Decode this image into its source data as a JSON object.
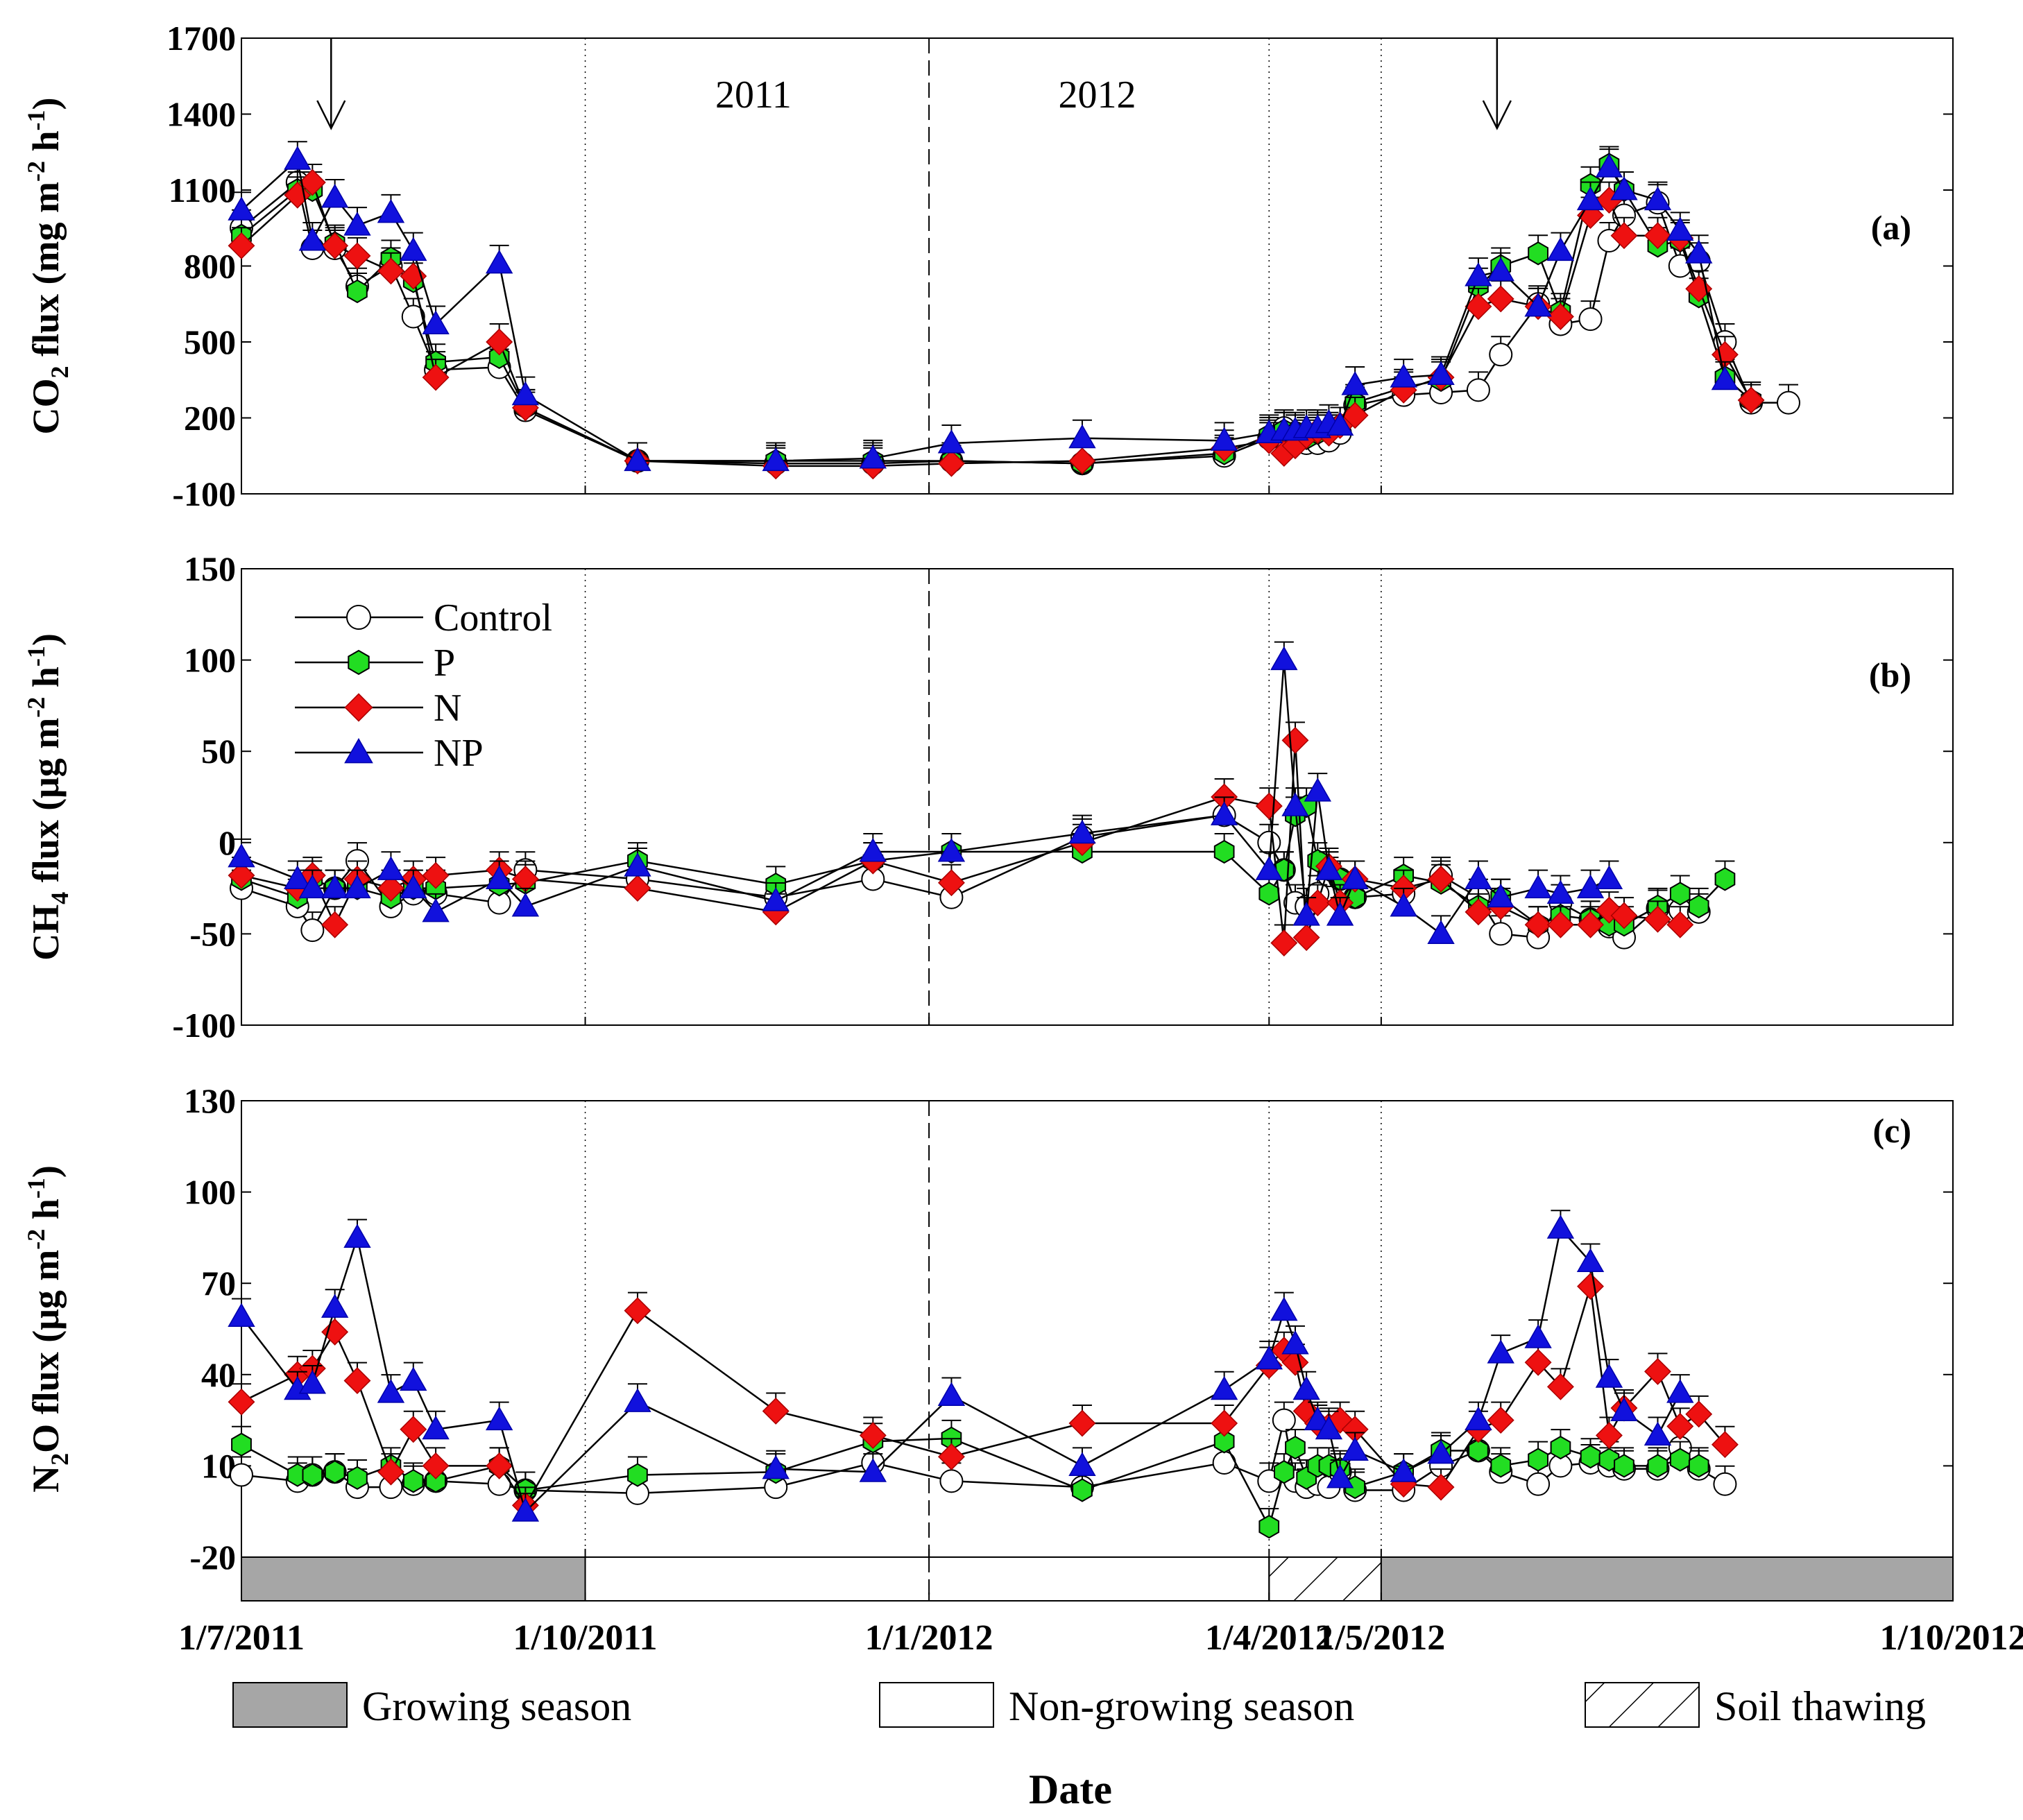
{
  "chart_data": {
    "type": "line",
    "xlabel": "Date",
    "x_range": [
      "2011-07-01",
      "2012-10-01"
    ],
    "x_ticks": [
      {
        "label": "1/7/2011",
        "date": "2011-07-01"
      },
      {
        "label": "1/10/2011",
        "date": "2011-10-01"
      },
      {
        "label": "1/1/2012",
        "date": "2012-01-01"
      },
      {
        "label": "1/4/2012",
        "date": "2012-04-01"
      },
      {
        "label": "1/5/2012",
        "date": "2012-05-01"
      },
      {
        "label": "1/10/2012",
        "date": "2012-10-01"
      }
    ],
    "year_labels": [
      {
        "text": "2011",
        "date": "2011-11-15"
      },
      {
        "text": "2012",
        "date": "2012-02-15"
      }
    ],
    "year_divider": "2012-01-01",
    "season_dividers": [
      "2011-10-01",
      "2012-04-01",
      "2012-05-01"
    ],
    "fertilization_arrows": [
      "2011-07-25",
      "2012-06-01"
    ],
    "legend": [
      {
        "name": "Control",
        "marker": "circle",
        "color": "#ffffff"
      },
      {
        "name": "P",
        "marker": "hexagon",
        "color": "#22dd22"
      },
      {
        "name": "N",
        "marker": "diamond",
        "color": "#ee1111"
      },
      {
        "name": "NP",
        "marker": "triangle",
        "color": "#1111dd"
      }
    ],
    "season_bar": [
      {
        "start": "2011-07-01",
        "end": "2011-10-01",
        "type": "growing"
      },
      {
        "start": "2011-10-01",
        "end": "2012-04-01",
        "type": "non-growing"
      },
      {
        "start": "2012-04-01",
        "end": "2012-05-01",
        "type": "thawing"
      },
      {
        "start": "2012-05-01",
        "end": "2012-10-01",
        "type": "growing"
      }
    ],
    "season_legend": [
      {
        "type": "growing",
        "label": "Growing season"
      },
      {
        "type": "non-growing",
        "label": "Non-growing season"
      },
      {
        "type": "thawing",
        "label": "Soil thawing"
      }
    ],
    "panels": [
      {
        "id": "a",
        "panel_label": "(a)",
        "ylabel_main": "CO",
        "ylabel_sub": "2",
        "ylabel_rest": " flux (mg m",
        "ylabel_sup1": "-2",
        "ylabel_mid": " h",
        "ylabel_sup2": "-1",
        "ylabel_end": ")",
        "ylim": [
          -100,
          1700
        ],
        "yticks": [
          -100,
          200,
          500,
          800,
          1100,
          1400,
          1700
        ],
        "dates": [
          "2011-07-01",
          "2011-07-16",
          "2011-07-20",
          "2011-07-26",
          "2011-08-01",
          "2011-08-10",
          "2011-08-16",
          "2011-08-22",
          "2011-09-08",
          "2011-09-15",
          "2011-10-15",
          "2011-11-21",
          "2011-12-17",
          "2012-01-07",
          "2012-02-11",
          "2012-03-20",
          "2012-04-01",
          "2012-04-05",
          "2012-04-08",
          "2012-04-11",
          "2012-04-14",
          "2012-04-17",
          "2012-04-20",
          "2012-04-24",
          "2012-05-07",
          "2012-05-17",
          "2012-05-27",
          "2012-06-02",
          "2012-06-12",
          "2012-06-18",
          "2012-06-26",
          "2012-07-01",
          "2012-07-05",
          "2012-07-14",
          "2012-07-20",
          "2012-07-25",
          "2012-08-01",
          "2012-08-08",
          "2012-08-18",
          "2012-08-28",
          "2012-09-09",
          "2012-09-14",
          "2012-10-01"
        ],
        "series": [
          {
            "name": "Control",
            "values": [
              950,
              1130,
              870,
              870,
              720,
              800,
              600,
              390,
              400,
              230,
              30,
              20,
              20,
              30,
              20,
              50,
              120,
              160,
              140,
              100,
              100,
              110,
              140,
              250,
              290,
              300,
              310,
              450,
              650,
              570,
              590,
              900,
              1000,
              1050,
              800,
              820,
              500,
              260,
              260,
              null,
              null,
              null,
              null
            ]
          },
          {
            "name": "P",
            "values": [
              920,
              1100,
              1100,
              890,
              700,
              830,
              740,
              420,
              440,
              240,
              30,
              30,
              30,
              30,
              20,
              60,
              130,
              150,
              140,
              120,
              140,
              150,
              170,
              260,
              320,
              350,
              720,
              800,
              850,
              620,
              1120,
              1200,
              1100,
              880,
              900,
              680,
              360,
              270,
              null,
              null,
              null,
              null,
              null
            ]
          },
          {
            "name": "N",
            "values": [
              880,
              1080,
              1130,
              880,
              840,
              780,
              760,
              360,
              500,
              240,
              30,
              10,
              10,
              20,
              30,
              80,
              110,
              60,
              90,
              130,
              150,
              140,
              170,
              210,
              310,
              360,
              640,
              670,
              640,
              600,
              1000,
              1060,
              920,
              920,
              910,
              710,
              450,
              270,
              null,
              null,
              null,
              null,
              null
            ]
          },
          {
            "name": "NP",
            "values": [
              1020,
              1220,
              900,
              1070,
              960,
              1010,
              860,
              570,
              810,
              290,
              30,
              30,
              40,
              100,
              120,
              110,
              140,
              150,
              150,
              160,
              160,
              180,
              170,
              330,
              360,
              370,
              760,
              780,
              640,
              860,
              1060,
              1190,
              1100,
              1060,
              940,
              850,
              350,
              null,
              null,
              null,
              null,
              null,
              null
            ]
          }
        ]
      },
      {
        "id": "b",
        "panel_label": "(b)",
        "ylabel_main": "CH",
        "ylabel_sub": "4",
        "ylabel_rest": " flux (μg m",
        "ylabel_sup1": "-2",
        "ylabel_mid": " h",
        "ylabel_sup2": "-1",
        "ylabel_end": ")",
        "ylim": [
          -100,
          150
        ],
        "yticks": [
          -100,
          -50,
          0,
          50,
          100,
          150
        ],
        "dates": [
          "2011-07-01",
          "2011-07-16",
          "2011-07-20",
          "2011-07-26",
          "2011-08-01",
          "2011-08-10",
          "2011-08-16",
          "2011-08-22",
          "2011-09-08",
          "2011-09-15",
          "2011-10-15",
          "2011-11-21",
          "2011-12-17",
          "2012-01-07",
          "2012-02-11",
          "2012-03-20",
          "2012-04-01",
          "2012-04-05",
          "2012-04-08",
          "2012-04-11",
          "2012-04-14",
          "2012-04-17",
          "2012-04-20",
          "2012-04-24",
          "2012-05-07",
          "2012-05-17",
          "2012-05-27",
          "2012-06-02",
          "2012-06-12",
          "2012-06-18",
          "2012-06-26",
          "2012-07-01",
          "2012-07-05",
          "2012-07-14",
          "2012-07-20",
          "2012-07-25",
          "2012-08-01",
          "2012-08-08",
          "2012-08-18",
          "2012-08-28",
          "2012-09-09",
          "2012-09-14",
          "2012-10-01"
        ],
        "series": [
          {
            "name": "Control",
            "values": [
              -25,
              -35,
              -48,
              -25,
              -10,
              -35,
              -28,
              -28,
              -33,
              -15,
              -20,
              -30,
              -20,
              -30,
              3,
              15,
              0,
              -15,
              -33,
              -35,
              -28,
              -18,
              -20,
              -30,
              -28,
              -18,
              -30,
              -50,
              -52,
              -33,
              -42,
              -46,
              -52,
              -36,
              -37,
              -38,
              null,
              null,
              null,
              null,
              null,
              null,
              null
            ]
          },
          {
            "name": "P",
            "values": [
              -20,
              -30,
              -20,
              -25,
              -25,
              -30,
              -25,
              -25,
              -23,
              -22,
              -10,
              -23,
              -10,
              -5,
              -5,
              -5,
              -28,
              -15,
              15,
              20,
              -10,
              -15,
              -20,
              -30,
              -18,
              -22,
              -35,
              -30,
              -45,
              -40,
              -42,
              -45,
              -45,
              -35,
              -28,
              -35,
              -20,
              null,
              null,
              null,
              null,
              null,
              null
            ]
          },
          {
            "name": "N",
            "values": [
              -18,
              -25,
              -18,
              -45,
              -20,
              -25,
              -20,
              -18,
              -15,
              -20,
              -25,
              -38,
              -10,
              -22,
              0,
              25,
              20,
              -55,
              56,
              -52,
              -33,
              -13,
              -33,
              -20,
              -25,
              -20,
              -38,
              -35,
              -45,
              -45,
              -45,
              -37,
              -40,
              -42,
              -45,
              null,
              null,
              null,
              null,
              null,
              null,
              null,
              null
            ]
          },
          {
            "name": "NP",
            "values": [
              -8,
              -20,
              -25,
              -25,
              -25,
              -15,
              -25,
              -38,
              -20,
              -35,
              -13,
              -32,
              -5,
              -5,
              5,
              15,
              -15,
              100,
              20,
              -40,
              28,
              -15,
              -40,
              -20,
              -35,
              -50,
              -20,
              -30,
              -25,
              -28,
              -25,
              -20,
              null,
              null,
              null,
              null,
              null,
              null,
              null,
              null,
              null,
              null,
              null
            ]
          }
        ]
      },
      {
        "id": "c",
        "panel_label": "(c)",
        "ylabel_main": "N",
        "ylabel_sub": "2",
        "ylabel_rest": "O flux (μg m",
        "ylabel_sup1": "-2",
        "ylabel_mid": " h",
        "ylabel_sup2": "-1",
        "ylabel_end": ")",
        "ylim": [
          -20,
          130
        ],
        "yticks": [
          -20,
          10,
          40,
          70,
          100,
          130
        ],
        "dates": [
          "2011-07-01",
          "2011-07-16",
          "2011-07-20",
          "2011-07-26",
          "2011-08-01",
          "2011-08-10",
          "2011-08-16",
          "2011-08-22",
          "2011-09-08",
          "2011-09-15",
          "2011-10-15",
          "2011-11-21",
          "2011-12-17",
          "2012-01-07",
          "2012-02-11",
          "2012-03-20",
          "2012-04-01",
          "2012-04-05",
          "2012-04-08",
          "2012-04-11",
          "2012-04-14",
          "2012-04-17",
          "2012-04-20",
          "2012-04-24",
          "2012-05-07",
          "2012-05-17",
          "2012-05-27",
          "2012-06-02",
          "2012-06-12",
          "2012-06-18",
          "2012-06-26",
          "2012-07-01",
          "2012-07-05",
          "2012-07-14",
          "2012-07-20",
          "2012-07-25",
          "2012-08-01",
          "2012-08-08",
          "2012-08-18",
          "2012-08-28",
          "2012-09-09",
          "2012-09-14",
          "2012-10-01"
        ],
        "series": [
          {
            "name": "Control",
            "values": [
              7,
              5,
              7,
              8,
              3,
              3,
              4,
              5,
              4,
              2,
              1,
              3,
              11,
              5,
              3,
              11,
              5,
              25,
              5,
              3,
              4,
              3,
              8,
              2,
              2,
              10,
              15,
              8,
              4,
              10,
              11,
              10,
              9,
              9,
              16,
              9,
              4,
              null,
              null,
              null,
              null,
              null,
              null
            ]
          },
          {
            "name": "P",
            "values": [
              17,
              7,
              7,
              8,
              6,
              10,
              5,
              5,
              10,
              2,
              7,
              8,
              18,
              19,
              2,
              18,
              -10,
              8,
              16,
              6,
              10,
              10,
              9,
              3,
              8,
              15,
              15,
              10,
              12,
              16,
              13,
              12,
              10,
              10,
              12,
              10,
              null,
              null,
              null,
              null,
              null,
              null,
              null
            ]
          },
          {
            "name": "N",
            "values": [
              31,
              40,
              42,
              54,
              38,
              8,
              22,
              10,
              10,
              -3,
              61,
              28,
              20,
              13,
              24,
              24,
              43,
              48,
              44,
              28,
              24,
              23,
              25,
              22,
              4,
              3,
              22,
              25,
              44,
              36,
              69,
              20,
              29,
              41,
              23,
              27,
              17,
              null,
              null,
              null,
              null,
              null,
              null
            ]
          },
          {
            "name": "NP",
            "values": [
              59,
              35,
              37,
              62,
              85,
              34,
              38,
              22,
              25,
              -5,
              31,
              9,
              8,
              33,
              10,
              35,
              45,
              61,
              50,
              35,
              25,
              22,
              6,
              15,
              8,
              14,
              25,
              47,
              52,
              88,
              77,
              39,
              28,
              20,
              34,
              null,
              null,
              null,
              null,
              null,
              null,
              null,
              null
            ]
          }
        ]
      }
    ]
  }
}
